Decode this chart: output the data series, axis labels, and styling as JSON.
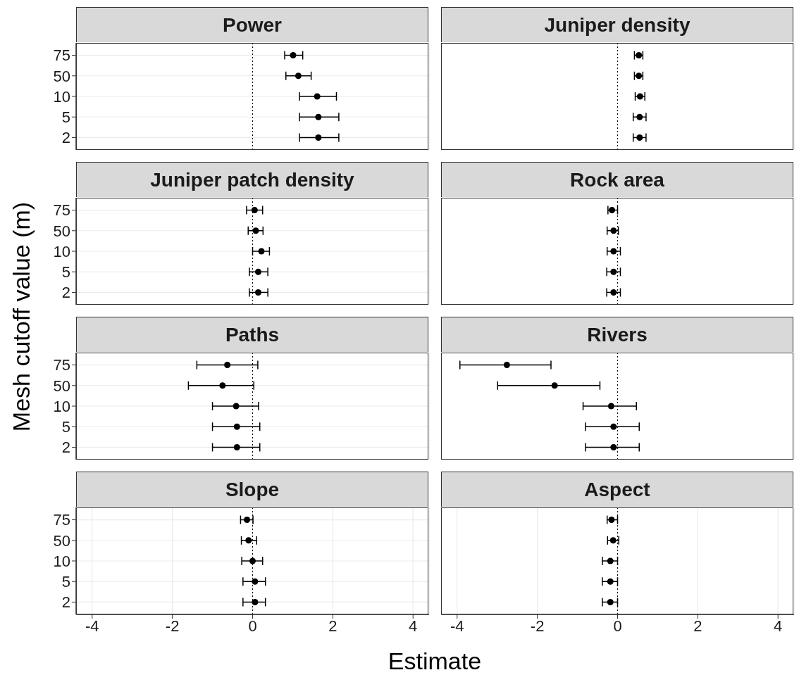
{
  "chart_data": [
    {
      "type": "scatter",
      "title": "Power",
      "ylabel": "Mesh cutoff value (m)",
      "orientation": "horizontal",
      "categories": [
        "75",
        "50",
        "10",
        "5",
        "2"
      ],
      "values": [
        1.01,
        1.14,
        1.61,
        1.64,
        1.64
      ],
      "errors": [
        [
          0.8,
          1.25
        ],
        [
          0.83,
          1.46
        ],
        [
          1.17,
          2.09
        ],
        [
          1.17,
          2.15
        ],
        [
          1.17,
          2.15
        ]
      ],
      "color": "#000000",
      "marker": "circle",
      "xlim": [
        -4.4,
        4.4
      ],
      "xticks": [
        -4,
        -2,
        0,
        2,
        4
      ],
      "grid": true,
      "ref_lines": [
        {
          "axis": "x",
          "value": 0,
          "line_style": "dotted"
        }
      ],
      "tick_labels": "y"
    },
    {
      "type": "scatter",
      "title": "Juniper density",
      "orientation": "horizontal",
      "categories": [
        "75",
        "50",
        "10",
        "5",
        "2"
      ],
      "values": [
        0.53,
        0.53,
        0.56,
        0.55,
        0.55
      ],
      "errors": [
        [
          0.42,
          0.63
        ],
        [
          0.42,
          0.63
        ],
        [
          0.44,
          0.68
        ],
        [
          0.39,
          0.71
        ],
        [
          0.39,
          0.71
        ]
      ],
      "color": "#000000",
      "marker": "circle",
      "xlim": [
        -4.4,
        4.4
      ],
      "xticks": [
        -4,
        -2,
        0,
        2,
        4
      ],
      "grid": true,
      "ref_lines": [
        {
          "axis": "x",
          "value": 0,
          "line_style": "dotted"
        }
      ],
      "tick_labels": false
    },
    {
      "type": "scatter",
      "title": "Juniper patch density",
      "orientation": "horizontal",
      "categories": [
        "75",
        "50",
        "10",
        "5",
        "2"
      ],
      "values": [
        0.05,
        0.08,
        0.22,
        0.14,
        0.14
      ],
      "errors": [
        [
          -0.15,
          0.25
        ],
        [
          -0.11,
          0.26
        ],
        [
          0,
          0.42
        ],
        [
          -0.08,
          0.38
        ],
        [
          -0.08,
          0.38
        ]
      ],
      "color": "#000000",
      "marker": "circle",
      "xlim": [
        -4.4,
        4.4
      ],
      "xticks": [
        -4,
        -2,
        0,
        2,
        4
      ],
      "grid": true,
      "ref_lines": [
        {
          "axis": "x",
          "value": 0,
          "line_style": "dotted"
        }
      ],
      "tick_labels": "y"
    },
    {
      "type": "scatter",
      "title": "Rock area",
      "orientation": "horizontal",
      "categories": [
        "75",
        "50",
        "10",
        "5",
        "2"
      ],
      "values": [
        -0.14,
        -0.1,
        -0.1,
        -0.1,
        -0.1
      ],
      "errors": [
        [
          -0.24,
          0
        ],
        [
          -0.26,
          0.02
        ],
        [
          -0.26,
          0.07
        ],
        [
          -0.27,
          0.07
        ],
        [
          -0.27,
          0.07
        ]
      ],
      "color": "#000000",
      "marker": "circle",
      "xlim": [
        -4.4,
        4.4
      ],
      "xticks": [
        -4,
        -2,
        0,
        2,
        4
      ],
      "grid": true,
      "ref_lines": [
        {
          "axis": "x",
          "value": 0,
          "line_style": "dotted"
        }
      ],
      "tick_labels": false
    },
    {
      "type": "scatter",
      "title": "Paths",
      "orientation": "horizontal",
      "categories": [
        "75",
        "50",
        "10",
        "5",
        "2"
      ],
      "values": [
        -0.63,
        -0.75,
        -0.41,
        -0.39,
        -0.39
      ],
      "errors": [
        [
          -1.39,
          0.13
        ],
        [
          -1.6,
          0.03
        ],
        [
          -1.0,
          0.15
        ],
        [
          -1.0,
          0.18
        ],
        [
          -1.0,
          0.18
        ]
      ],
      "color": "#000000",
      "marker": "circle",
      "xlim": [
        -4.4,
        4.4
      ],
      "xticks": [
        -4,
        -2,
        0,
        2,
        4
      ],
      "grid": true,
      "ref_lines": [
        {
          "axis": "x",
          "value": 0,
          "line_style": "dotted"
        }
      ],
      "tick_labels": "y"
    },
    {
      "type": "scatter",
      "title": "Rivers",
      "orientation": "horizontal",
      "categories": [
        "75",
        "50",
        "10",
        "5",
        "2"
      ],
      "values": [
        -2.76,
        -1.57,
        -0.16,
        -0.1,
        -0.1
      ],
      "errors": [
        [
          -3.93,
          -1.66
        ],
        [
          -2.99,
          -0.44
        ],
        [
          -0.86,
          0.47
        ],
        [
          -0.8,
          0.54
        ],
        [
          -0.8,
          0.54
        ]
      ],
      "color": "#000000",
      "marker": "circle",
      "xlim": [
        -4.4,
        4.4
      ],
      "xticks": [
        -4,
        -2,
        0,
        2,
        4
      ],
      "grid": true,
      "ref_lines": [
        {
          "axis": "x",
          "value": 0,
          "line_style": "dotted"
        }
      ],
      "tick_labels": false
    },
    {
      "type": "scatter",
      "title": "Slope",
      "xlabel": "Estimate",
      "orientation": "horizontal",
      "categories": [
        "75",
        "50",
        "10",
        "5",
        "2"
      ],
      "values": [
        -0.14,
        -0.1,
        0,
        0.06,
        0.06
      ],
      "errors": [
        [
          -0.3,
          0.01
        ],
        [
          -0.28,
          0.1
        ],
        [
          -0.27,
          0.25
        ],
        [
          -0.24,
          0.32
        ],
        [
          -0.24,
          0.32
        ]
      ],
      "color": "#000000",
      "marker": "circle",
      "xlim": [
        -4.4,
        4.4
      ],
      "xticks": [
        -4,
        -2,
        0,
        2,
        4
      ],
      "grid": true,
      "ref_lines": [
        {
          "axis": "x",
          "value": 0,
          "line_style": "dotted"
        }
      ]
    },
    {
      "type": "scatter",
      "title": "Aspect",
      "orientation": "horizontal",
      "categories": [
        "75",
        "50",
        "10",
        "5",
        "2"
      ],
      "values": [
        -0.15,
        -0.11,
        -0.18,
        -0.18,
        -0.18
      ],
      "errors": [
        [
          -0.26,
          0
        ],
        [
          -0.25,
          0.03
        ],
        [
          -0.38,
          0
        ],
        [
          -0.38,
          0
        ],
        [
          -0.38,
          0
        ]
      ],
      "color": "#000000",
      "marker": "circle",
      "xlim": [
        -4.4,
        4.4
      ],
      "xticks": [
        -4,
        -2,
        0,
        2,
        4
      ],
      "grid": true,
      "ref_lines": [
        {
          "axis": "x",
          "value": 0,
          "line_style": "dotted"
        }
      ],
      "tick_labels": "x"
    }
  ]
}
